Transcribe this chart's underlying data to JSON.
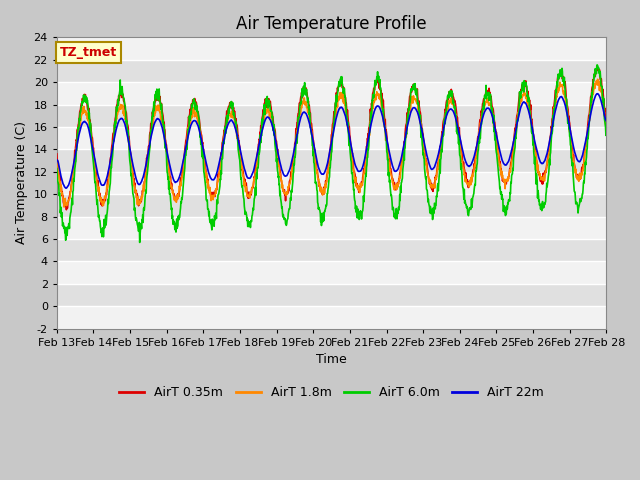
{
  "title": "Air Temperature Profile",
  "xlabel": "Time",
  "ylabel": "Air Temperature (C)",
  "ylim": [
    -2,
    24
  ],
  "xlim": [
    0,
    15
  ],
  "xtick_labels": [
    "Feb 13",
    "Feb 14",
    "Feb 15",
    "Feb 16",
    "Feb 17",
    "Feb 18",
    "Feb 19",
    "Feb 20",
    "Feb 21",
    "Feb 22",
    "Feb 23",
    "Feb 24",
    "Feb 25",
    "Feb 26",
    "Feb 27",
    "Feb 28"
  ],
  "xtick_positions": [
    0,
    1,
    2,
    3,
    4,
    5,
    6,
    7,
    8,
    9,
    10,
    11,
    12,
    13,
    14,
    15
  ],
  "ytick_labels": [
    "-2",
    "0",
    "2",
    "4",
    "6",
    "8",
    "10",
    "12",
    "14",
    "16",
    "18",
    "20",
    "22",
    "24"
  ],
  "ytick_positions": [
    -2,
    0,
    2,
    4,
    6,
    8,
    10,
    12,
    14,
    16,
    18,
    20,
    22,
    24
  ],
  "line_colors": [
    "#dd0000",
    "#ff8800",
    "#00cc00",
    "#0000dd"
  ],
  "line_labels": [
    "AirT 0.35m",
    "AirT 1.8m",
    "AirT 6.0m",
    "AirT 22m"
  ],
  "bg_color": "#e8e8e8",
  "annotation_text": "TZ_tmet",
  "annotation_bg": "#ffffcc",
  "annotation_border": "#aa8800",
  "title_fontsize": 12,
  "axis_label_fontsize": 9,
  "tick_fontsize": 8,
  "legend_fontsize": 9
}
